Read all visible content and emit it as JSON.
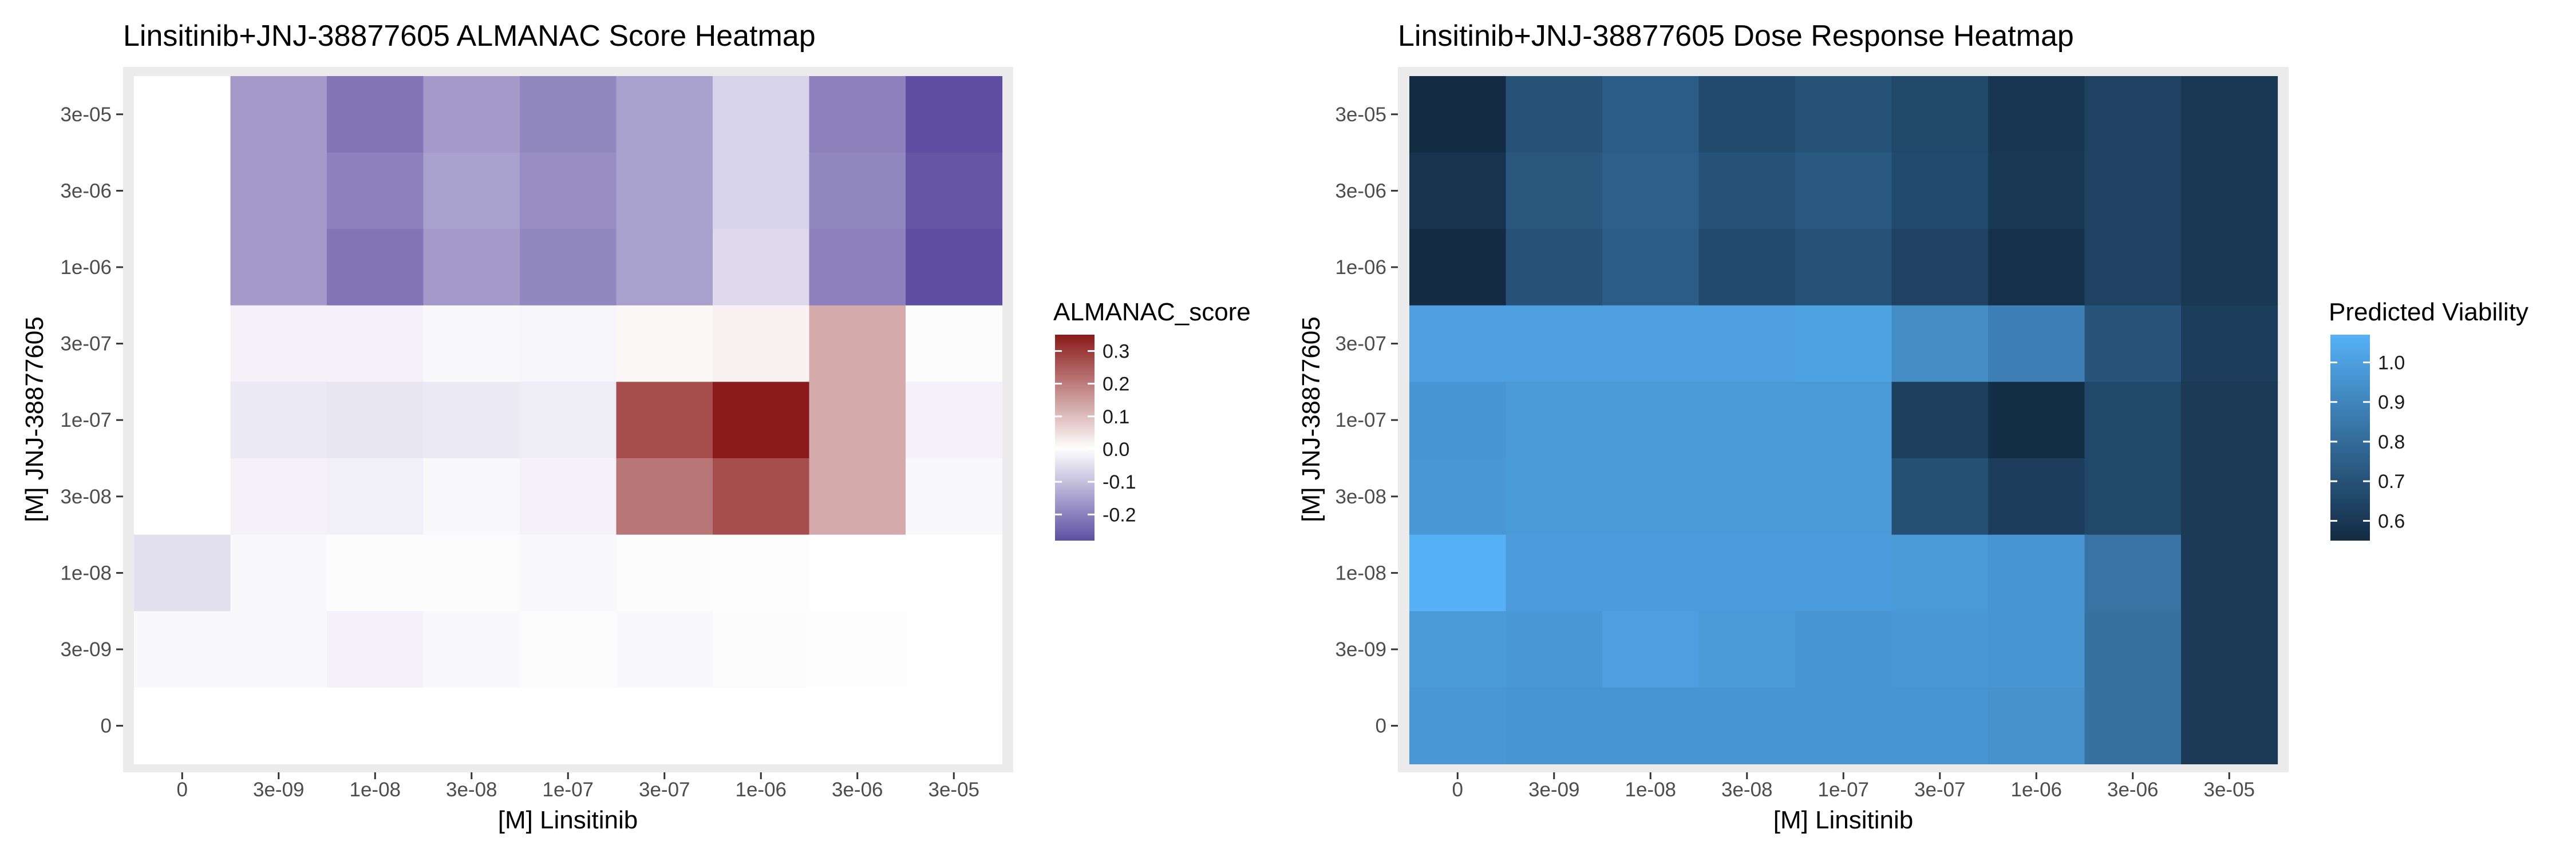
{
  "chart_data": [
    {
      "type": "heatmap",
      "title": "Linsitinib+JNJ-38877605 ALMANAC Score Heatmap",
      "xlabel": "[M] Linsitinib",
      "ylabel": "[M] JNJ-38877605",
      "x_categories": [
        "0",
        "3e-09",
        "1e-08",
        "3e-08",
        "1e-07",
        "3e-07",
        "1e-06",
        "3e-06",
        "3e-05"
      ],
      "y_categories": [
        "0",
        "3e-09",
        "1e-08",
        "3e-08",
        "1e-07",
        "3e-07",
        "1e-06",
        "3e-06",
        "3e-05"
      ],
      "rows_order": "top-to-bottom",
      "values": [
        [
          0.0,
          -0.16,
          -0.22,
          -0.16,
          -0.19,
          -0.15,
          -0.07,
          -0.2,
          -0.28
        ],
        [
          0.0,
          -0.16,
          -0.2,
          -0.15,
          -0.18,
          -0.15,
          -0.07,
          -0.19,
          -0.27
        ],
        [
          0.0,
          -0.16,
          -0.22,
          -0.16,
          -0.19,
          -0.15,
          -0.06,
          -0.2,
          -0.28
        ],
        [
          0.0,
          -0.02,
          -0.02,
          -0.01,
          -0.015,
          0.01,
          0.02,
          0.13,
          -0.005
        ],
        [
          0.0,
          -0.035,
          -0.04,
          -0.035,
          -0.03,
          0.27,
          0.35,
          0.13,
          -0.02
        ],
        [
          0.0,
          -0.02,
          -0.025,
          -0.01,
          -0.02,
          0.21,
          0.27,
          0.13,
          -0.01
        ],
        [
          -0.05,
          -0.01,
          -0.005,
          -0.005,
          -0.01,
          -0.005,
          -0.003,
          0.0,
          -0.002
        ],
        [
          -0.01,
          -0.01,
          -0.02,
          -0.01,
          0.005,
          -0.01,
          -0.005,
          -0.003,
          -0.002
        ],
        [
          0.0,
          0.0,
          0.0,
          0.0,
          0.0,
          0.0,
          0.0,
          0.0,
          0.0
        ]
      ],
      "legend": {
        "title": "ALMANAC_score",
        "position": "right",
        "breaks": [
          0.3,
          0.2,
          0.1,
          0.0,
          -0.1,
          -0.2
        ],
        "break_labels": [
          "0.3",
          "0.2",
          "0.1",
          "0.0",
          "-0.1",
          "-0.2"
        ],
        "range": [
          -0.28,
          0.35
        ],
        "colors": {
          "low": "#5e4fa2",
          "mid": "#ffffff",
          "high": "#8b1a1a"
        }
      }
    },
    {
      "type": "heatmap",
      "title": "Linsitinib+JNJ-38877605 Dose Response Heatmap",
      "xlabel": "[M] Linsitinib",
      "ylabel": "[M] JNJ-38877605",
      "x_categories": [
        "0",
        "3e-09",
        "1e-08",
        "3e-08",
        "1e-07",
        "3e-07",
        "1e-06",
        "3e-06",
        "3e-05"
      ],
      "y_categories": [
        "0",
        "3e-09",
        "1e-08",
        "3e-08",
        "1e-07",
        "3e-07",
        "1e-06",
        "3e-06",
        "3e-05"
      ],
      "rows_order": "top-to-bottom",
      "values": [
        [
          0.55,
          0.7,
          0.74,
          0.67,
          0.7,
          0.66,
          0.59,
          0.64,
          0.6
        ],
        [
          0.58,
          0.72,
          0.75,
          0.7,
          0.73,
          0.67,
          0.6,
          0.64,
          0.6
        ],
        [
          0.55,
          0.7,
          0.74,
          0.67,
          0.7,
          0.64,
          0.57,
          0.64,
          0.6
        ],
        [
          1.0,
          1.0,
          1.0,
          1.0,
          1.01,
          0.93,
          0.88,
          0.71,
          0.62
        ],
        [
          0.96,
          0.98,
          0.98,
          0.98,
          0.98,
          0.63,
          0.56,
          0.66,
          0.61
        ],
        [
          0.97,
          0.98,
          0.98,
          0.98,
          0.98,
          0.69,
          0.62,
          0.66,
          0.61
        ],
        [
          1.07,
          0.99,
          0.99,
          0.99,
          0.99,
          0.98,
          0.96,
          0.83,
          0.61
        ],
        [
          0.98,
          0.97,
          1.0,
          0.98,
          0.96,
          0.97,
          0.96,
          0.82,
          0.61
        ],
        [
          0.97,
          0.96,
          0.96,
          0.96,
          0.96,
          0.96,
          0.95,
          0.82,
          0.61
        ]
      ],
      "legend": {
        "title": "Predicted Viability",
        "position": "right",
        "breaks": [
          1.0,
          0.9,
          0.8,
          0.7,
          0.6
        ],
        "break_labels": [
          "1.0",
          "0.9",
          "0.8",
          "0.7",
          "0.6"
        ],
        "range": [
          0.55,
          1.07
        ],
        "colors": {
          "low": "#132b43",
          "high": "#56b1f7"
        }
      }
    }
  ],
  "theme": {
    "panel_background": "#ebebeb",
    "axis_text_color": "#4d4d4d",
    "title_color": "#000000"
  }
}
